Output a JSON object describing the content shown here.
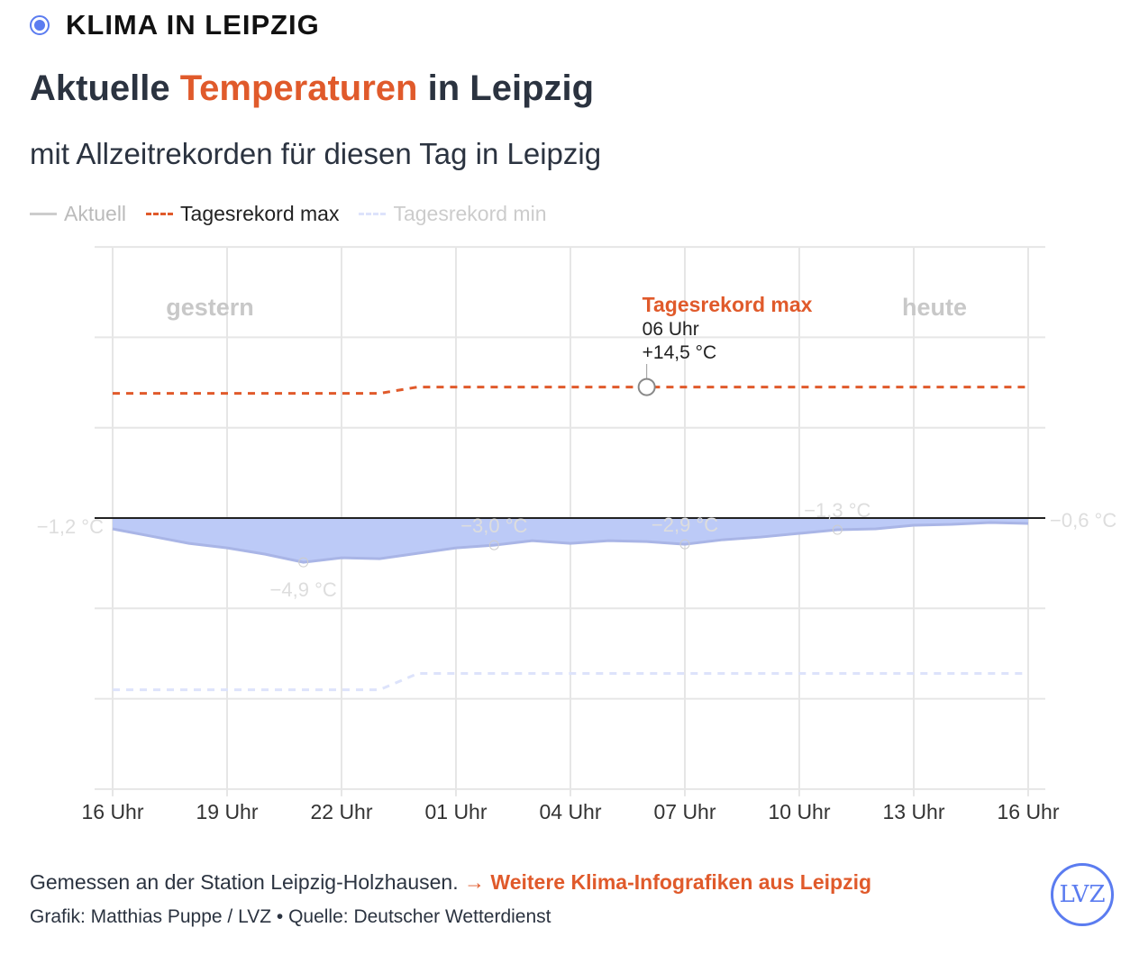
{
  "kicker": "KLIMA IN LEIPZIG",
  "title": {
    "pre": "Aktuelle ",
    "highlight": "Temperaturen",
    "post": " in Leipzig"
  },
  "subtitle": "mit Allzeitrekorden für diesen Tag in Leipzig",
  "footer": {
    "text": "Gemessen an der Station Leipzig-Holzhausen. ",
    "link": "→ Weitere Klima-Infografiken aus Leipzig",
    "credit": "Grafik: Matthias Puppe / LVZ • Quelle: Deutscher Wetterdienst",
    "logo": "LVZ"
  },
  "colors": {
    "accent": "#e05a2b",
    "area": "#bccaf7",
    "line": "#a9b5e6",
    "min": "#dde3fb",
    "brand": "#5b7cf0"
  },
  "chart_data": {
    "type": "line",
    "legend": [
      "Aktuell",
      "Tagesrekord max",
      "Tagesrekord min"
    ],
    "ylim": [
      -30,
      30
    ],
    "x_ticks": [
      "16 Uhr",
      "19 Uhr",
      "22 Uhr",
      "01 Uhr",
      "04 Uhr",
      "07 Uhr",
      "10 Uhr",
      "13 Uhr",
      "16 Uhr"
    ],
    "day_labels": [
      "gestern",
      "heute"
    ],
    "series": [
      {
        "name": "Aktuell",
        "values": [
          -1.2,
          -2.0,
          -2.8,
          -3.3,
          -4.0,
          -4.9,
          -4.4,
          -4.5,
          -3.9,
          -3.3,
          -3.0,
          -2.5,
          -2.8,
          -2.5,
          -2.6,
          -2.9,
          -2.4,
          -2.1,
          -1.7,
          -1.3,
          -1.2,
          -0.8,
          -0.7,
          -0.5,
          -0.6
        ]
      },
      {
        "name": "Tagesrekord max",
        "values": [
          13.8,
          13.8,
          13.8,
          13.8,
          13.8,
          13.8,
          13.8,
          13.8,
          14.5,
          14.5,
          14.5,
          14.5,
          14.5,
          14.5,
          14.5,
          14.5,
          14.5,
          14.5,
          14.5,
          14.5,
          14.5,
          14.5,
          14.5,
          14.5,
          14.5
        ]
      },
      {
        "name": "Tagesrekord min",
        "values": [
          -19,
          -19,
          -19,
          -19,
          -19,
          -19,
          -19,
          -19,
          -17.2,
          -17.2,
          -17.2,
          -17.2,
          -17.2,
          -17.2,
          -17.2,
          -17.2,
          -17.2,
          -17.2,
          -17.2,
          -17.2,
          -17.2,
          -17.2,
          -17.2,
          -17.2,
          -17.2
        ]
      }
    ],
    "point_labels": [
      {
        "i": 0,
        "text": "−1,2 °C"
      },
      {
        "i": 5,
        "text": "−4,9 °C"
      },
      {
        "i": 10,
        "text": "−3,0 °C"
      },
      {
        "i": 15,
        "text": "−2,9 °C"
      },
      {
        "i": 19,
        "text": "−1,3 °C"
      },
      {
        "i": 24,
        "text": "−0,6 °C"
      }
    ],
    "annotation": {
      "i": 14,
      "title": "Tagesrekord max",
      "time": "06 Uhr",
      "value": "+14,5 °C"
    }
  }
}
